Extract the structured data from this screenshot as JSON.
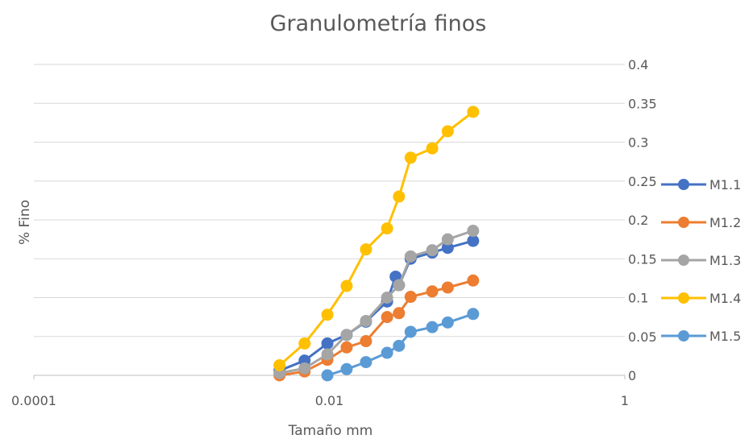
{
  "chart_data": {
    "type": "scatter",
    "title": "Granulometría finos",
    "xlabel": "Tamaño mm",
    "ylabel": "% Fino",
    "xscale": "log",
    "xlim": [
      0.0001,
      1
    ],
    "ylim": [
      0,
      0.4
    ],
    "x_ticks": [
      "0.0001",
      "0.01",
      "1"
    ],
    "y_ticks": [
      "0",
      "0.05",
      "0.1",
      "0.15",
      "0.2",
      "0.25",
      "0.3",
      "0.35",
      "0.4"
    ],
    "y_axis_side": "right",
    "grid": "horizontal",
    "legend": "right",
    "series": [
      {
        "name": "M1.1",
        "color": "#4472C4",
        "points": [
          [
            0.0046,
            0.006
          ],
          [
            0.0068,
            0.019
          ],
          [
            0.0097,
            0.041
          ],
          [
            0.0131,
            0.052
          ],
          [
            0.0177,
            0.069
          ],
          [
            0.0246,
            0.095
          ],
          [
            0.0281,
            0.127
          ],
          [
            0.0296,
            0.116
          ],
          [
            0.0355,
            0.15
          ],
          [
            0.0497,
            0.158
          ],
          [
            0.0633,
            0.164
          ],
          [
            0.094,
            0.173
          ]
        ]
      },
      {
        "name": "M1.2",
        "color": "#ED7D31",
        "points": [
          [
            0.0046,
            0.0
          ],
          [
            0.0068,
            0.005
          ],
          [
            0.0097,
            0.02
          ],
          [
            0.0131,
            0.036
          ],
          [
            0.0177,
            0.044
          ],
          [
            0.0246,
            0.075
          ],
          [
            0.0296,
            0.08
          ],
          [
            0.0355,
            0.101
          ],
          [
            0.0497,
            0.108
          ],
          [
            0.0633,
            0.113
          ],
          [
            0.094,
            0.122
          ]
        ]
      },
      {
        "name": "M1.3",
        "color": "#A5A5A5",
        "points": [
          [
            0.0046,
            0.003
          ],
          [
            0.0068,
            0.009
          ],
          [
            0.0097,
            0.027
          ],
          [
            0.0131,
            0.052
          ],
          [
            0.0177,
            0.07
          ],
          [
            0.0246,
            0.1
          ],
          [
            0.0296,
            0.116
          ],
          [
            0.0355,
            0.153
          ],
          [
            0.0497,
            0.161
          ],
          [
            0.0633,
            0.175
          ],
          [
            0.094,
            0.186
          ]
        ]
      },
      {
        "name": "M1.4",
        "color": "#FFC000",
        "points": [
          [
            0.0046,
            0.013
          ],
          [
            0.0068,
            0.041
          ],
          [
            0.0097,
            0.078
          ],
          [
            0.0131,
            0.115
          ],
          [
            0.0177,
            0.162
          ],
          [
            0.0246,
            0.189
          ],
          [
            0.0296,
            0.23
          ],
          [
            0.0355,
            0.28
          ],
          [
            0.0497,
            0.292
          ],
          [
            0.0633,
            0.314
          ],
          [
            0.094,
            0.339
          ]
        ]
      },
      {
        "name": "M1.5",
        "color": "#5B9BD5",
        "points": [
          [
            0.0097,
            0.0
          ],
          [
            0.0131,
            0.008
          ],
          [
            0.0177,
            0.017
          ],
          [
            0.0246,
            0.029
          ],
          [
            0.0296,
            0.038
          ],
          [
            0.0355,
            0.056
          ],
          [
            0.0497,
            0.062
          ],
          [
            0.0633,
            0.068
          ],
          [
            0.094,
            0.079
          ]
        ]
      }
    ]
  }
}
